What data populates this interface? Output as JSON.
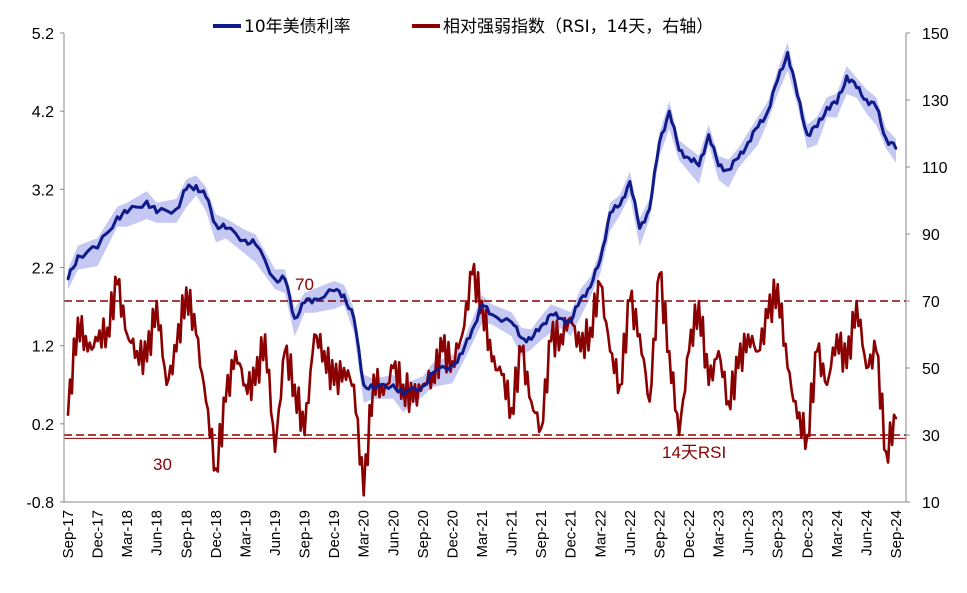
{
  "chart_data": {
    "type": "line",
    "legend": [
      {
        "label": "10年美债利率",
        "color": "#101b8a"
      },
      {
        "label": "相对强弱指数（RSI，14天，右轴）",
        "color": "#8b0000"
      }
    ],
    "legend_position": "top",
    "left_axis": {
      "ticks": [
        "5.2",
        "4.2",
        "3.2",
        "2.2",
        "1.2",
        "0.2",
        "-0.8"
      ],
      "range": [
        -0.8,
        5.2
      ]
    },
    "right_axis": {
      "ticks": [
        "150",
        "130",
        "110",
        "90",
        "70",
        "50",
        "30",
        "10"
      ],
      "range": [
        10,
        150
      ]
    },
    "x_ticks": [
      "Sep-17",
      "Dec-17",
      "Mar-18",
      "Jun-18",
      "Sep-18",
      "Dec-18",
      "Mar-19",
      "Jun-19",
      "Sep-19",
      "Dec-19",
      "Mar-20",
      "Jun-20",
      "Sep-20",
      "Dec-20",
      "Mar-21",
      "Jun-21",
      "Sep-21",
      "Dec-21",
      "Mar-22",
      "Jun-22",
      "Sep-22",
      "Dec-22",
      "Mar-23",
      "Jun-23",
      "Sep-23",
      "Dec-23",
      "Mar-24",
      "Jun-24",
      "Sep-24"
    ],
    "reference_lines": [
      {
        "axis": "right",
        "value": 70,
        "label": "70",
        "color": "#8b0000",
        "style": "dashed"
      },
      {
        "axis": "right",
        "value": 30,
        "label": "30",
        "color": "#8b0000",
        "style": "dashed"
      }
    ],
    "annotation": {
      "text": "14天RSI",
      "color": "#8b0000"
    },
    "series": [
      {
        "name": "10年美债利率",
        "axis": "left",
        "color": "#101b8a",
        "x": [
          "Sep-17",
          "Oct-17",
          "Dec-17",
          "Feb-18",
          "Mar-18",
          "May-18",
          "Jun-18",
          "Aug-18",
          "Sep-18",
          "Oct-18",
          "Nov-18",
          "Dec-18",
          "Jan-19",
          "Mar-19",
          "Apr-19",
          "Jun-19",
          "Jul-19",
          "Aug-19",
          "Sep-19",
          "Oct-19",
          "Dec-19",
          "Jan-20",
          "Feb-20",
          "Mar-20",
          "Apr-20",
          "Jun-20",
          "Jul-20",
          "Sep-20",
          "Oct-20",
          "Dec-20",
          "Jan-21",
          "Feb-21",
          "Mar-21",
          "Apr-21",
          "Jun-21",
          "Jul-21",
          "Aug-21",
          "Sep-21",
          "Oct-21",
          "Nov-21",
          "Dec-21",
          "Jan-22",
          "Feb-22",
          "Mar-22",
          "Apr-22",
          "May-22",
          "Jun-22",
          "Jul-22",
          "Aug-22",
          "Sep-22",
          "Oct-22",
          "Nov-22",
          "Dec-22",
          "Jan-23",
          "Feb-23",
          "Mar-23",
          "Apr-23",
          "May-23",
          "Jun-23",
          "Jul-23",
          "Aug-23",
          "Sep-23",
          "Oct-23",
          "Nov-23",
          "Dec-23",
          "Jan-24",
          "Feb-24",
          "Mar-24",
          "Apr-24",
          "May-24",
          "Jun-24",
          "Jul-24",
          "Aug-24",
          "Sep-24"
        ],
        "values": [
          2.05,
          2.35,
          2.45,
          2.85,
          2.9,
          3.05,
          2.9,
          2.95,
          3.2,
          3.25,
          3.1,
          2.75,
          2.7,
          2.55,
          2.5,
          2.05,
          2.05,
          1.55,
          1.75,
          1.8,
          1.9,
          1.85,
          1.55,
          0.7,
          0.65,
          0.7,
          0.58,
          0.68,
          0.85,
          0.95,
          1.1,
          1.4,
          1.72,
          1.6,
          1.5,
          1.3,
          1.28,
          1.45,
          1.6,
          1.55,
          1.5,
          1.8,
          1.95,
          2.3,
          2.9,
          3.0,
          3.3,
          2.7,
          2.95,
          3.8,
          4.2,
          3.7,
          3.6,
          3.5,
          3.9,
          3.5,
          3.45,
          3.6,
          3.8,
          4.0,
          4.2,
          4.6,
          4.95,
          4.4,
          3.9,
          4.0,
          4.25,
          4.3,
          4.65,
          4.5,
          4.35,
          4.25,
          3.85,
          3.72
        ]
      },
      {
        "name": "相对强弱指数（RSI，14天，右轴）",
        "axis": "right",
        "color": "#8b0000",
        "x": [
          "Sep-17",
          "Oct-17",
          "Nov-17",
          "Dec-17",
          "Jan-18",
          "Feb-18",
          "Mar-18",
          "Apr-18",
          "May-18",
          "Jun-18",
          "Jul-18",
          "Aug-18",
          "Sep-18",
          "Oct-18",
          "Nov-18",
          "Dec-18",
          "Jan-19",
          "Feb-19",
          "Mar-19",
          "Apr-19",
          "May-19",
          "Jun-19",
          "Jul-19",
          "Aug-19",
          "Sep-19",
          "Oct-19",
          "Nov-19",
          "Dec-19",
          "Jan-20",
          "Feb-20",
          "Mar-20",
          "Apr-20",
          "May-20",
          "Jun-20",
          "Jul-20",
          "Aug-20",
          "Sep-20",
          "Oct-20",
          "Nov-20",
          "Dec-20",
          "Jan-21",
          "Feb-21",
          "Mar-21",
          "Apr-21",
          "May-21",
          "Jun-21",
          "Jul-21",
          "Aug-21",
          "Sep-21",
          "Oct-21",
          "Nov-21",
          "Dec-21",
          "Jan-22",
          "Feb-22",
          "Mar-22",
          "Apr-22",
          "May-22",
          "Jun-22",
          "Jul-22",
          "Aug-22",
          "Sep-22",
          "Oct-22",
          "Nov-22",
          "Dec-22",
          "Jan-23",
          "Feb-23",
          "Mar-23",
          "Apr-23",
          "May-23",
          "Jun-23",
          "Jul-23",
          "Aug-23",
          "Sep-23",
          "Oct-23",
          "Nov-23",
          "Dec-23",
          "Jan-24",
          "Feb-24",
          "Mar-24",
          "Apr-24",
          "May-24",
          "Jun-24",
          "Jul-24",
          "Aug-24",
          "Sep-24"
        ],
        "values": [
          36,
          65,
          55,
          58,
          62,
          75,
          60,
          55,
          52,
          70,
          45,
          55,
          74,
          60,
          40,
          20,
          40,
          55,
          45,
          45,
          60,
          25,
          55,
          45,
          30,
          60,
          55,
          45,
          50,
          45,
          12,
          48,
          42,
          50,
          45,
          40,
          45,
          48,
          55,
          52,
          60,
          78,
          70,
          52,
          48,
          38,
          55,
          40,
          32,
          58,
          60,
          65,
          55,
          62,
          75,
          55,
          45,
          70,
          60,
          40,
          78,
          55,
          30,
          55,
          70,
          45,
          55,
          40,
          50,
          60,
          55,
          65,
          75,
          50,
          35,
          30,
          55,
          45,
          60,
          50,
          70,
          50,
          55,
          25,
          35
        ]
      }
    ]
  }
}
